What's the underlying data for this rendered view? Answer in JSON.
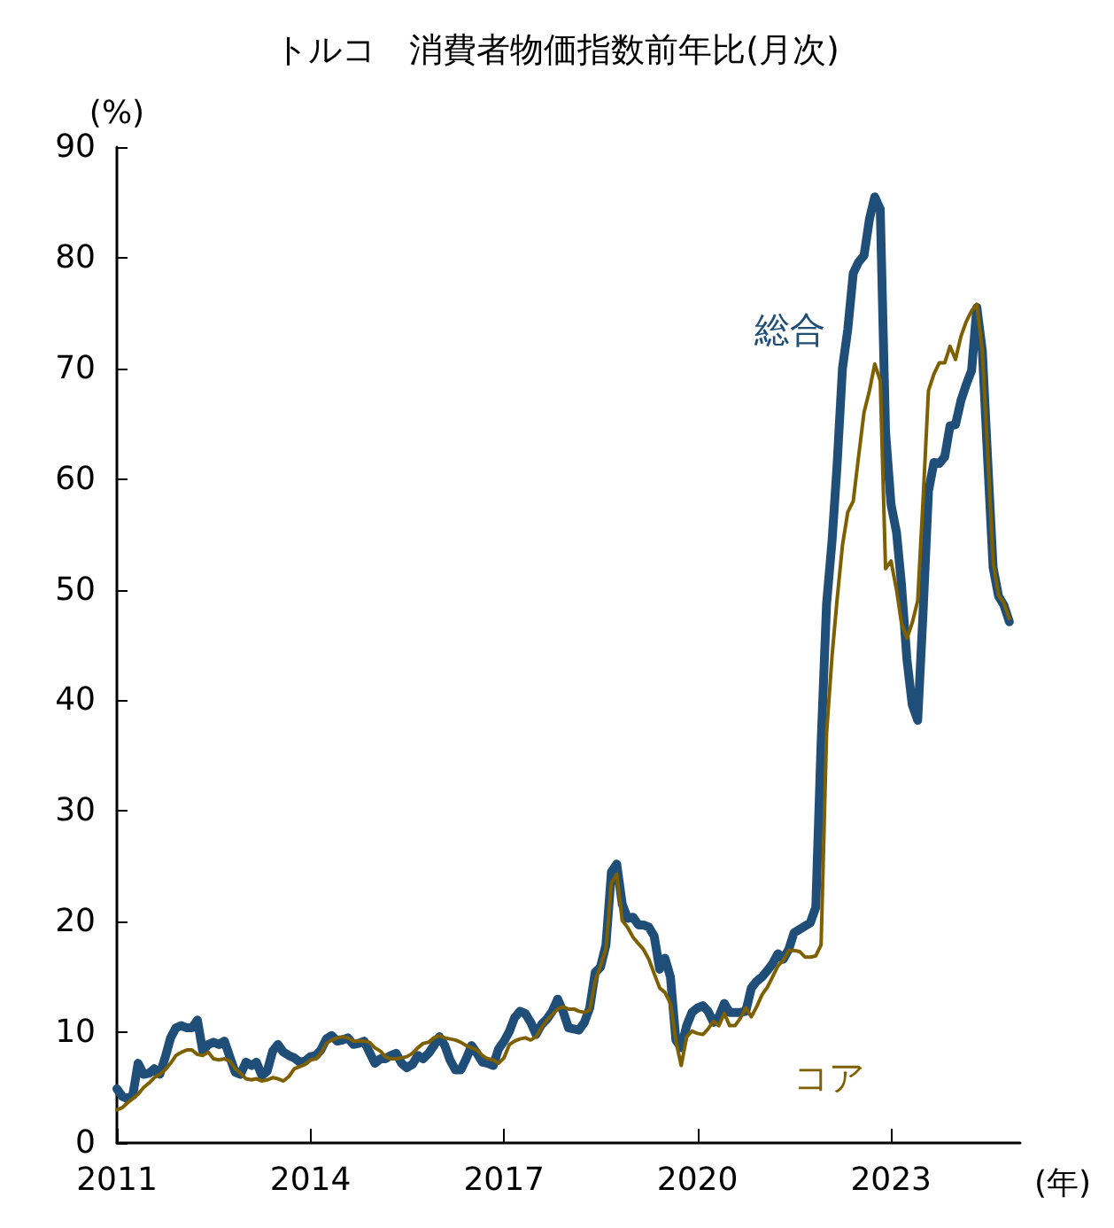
{
  "chart_data": {
    "type": "line",
    "title": "トルコ　消費者物価指数前年比(月次)",
    "ylabel": "(%)",
    "xlabel": "(年)",
    "x": [
      "2011-01",
      "2011-02",
      "2011-03",
      "2011-04",
      "2011-05",
      "2011-06",
      "2011-07",
      "2011-08",
      "2011-09",
      "2011-10",
      "2011-11",
      "2011-12",
      "2012-01",
      "2012-02",
      "2012-03",
      "2012-04",
      "2012-05",
      "2012-06",
      "2012-07",
      "2012-08",
      "2012-09",
      "2012-10",
      "2012-11",
      "2012-12",
      "2013-01",
      "2013-02",
      "2013-03",
      "2013-04",
      "2013-05",
      "2013-06",
      "2013-07",
      "2013-08",
      "2013-09",
      "2013-10",
      "2013-11",
      "2013-12",
      "2014-01",
      "2014-02",
      "2014-03",
      "2014-04",
      "2014-05",
      "2014-06",
      "2014-07",
      "2014-08",
      "2014-09",
      "2014-10",
      "2014-11",
      "2014-12",
      "2015-01",
      "2015-02",
      "2015-03",
      "2015-04",
      "2015-05",
      "2015-06",
      "2015-07",
      "2015-08",
      "2015-09",
      "2015-10",
      "2015-11",
      "2015-12",
      "2016-01",
      "2016-02",
      "2016-03",
      "2016-04",
      "2016-05",
      "2016-06",
      "2016-07",
      "2016-08",
      "2016-09",
      "2016-10",
      "2016-11",
      "2016-12",
      "2017-01",
      "2017-02",
      "2017-03",
      "2017-04",
      "2017-05",
      "2017-06",
      "2017-07",
      "2017-08",
      "2017-09",
      "2017-10",
      "2017-11",
      "2017-12",
      "2018-01",
      "2018-02",
      "2018-03",
      "2018-04",
      "2018-05",
      "2018-06",
      "2018-07",
      "2018-08",
      "2018-09",
      "2018-10",
      "2018-11",
      "2018-12",
      "2019-01",
      "2019-02",
      "2019-03",
      "2019-04",
      "2019-05",
      "2019-06",
      "2019-07",
      "2019-08",
      "2019-09",
      "2019-10",
      "2019-11",
      "2019-12",
      "2020-01",
      "2020-02",
      "2020-03",
      "2020-04",
      "2020-05",
      "2020-06",
      "2020-07",
      "2020-08",
      "2020-09",
      "2020-10",
      "2020-11",
      "2020-12",
      "2021-01",
      "2021-02",
      "2021-03",
      "2021-04",
      "2021-05",
      "2021-06",
      "2021-07",
      "2021-08",
      "2021-09",
      "2021-10",
      "2021-11",
      "2021-12",
      "2022-01",
      "2022-02",
      "2022-03",
      "2022-04",
      "2022-05",
      "2022-06",
      "2022-07",
      "2022-08",
      "2022-09",
      "2022-10",
      "2022-11",
      "2022-12",
      "2023-01",
      "2023-02",
      "2023-03",
      "2023-04",
      "2023-05",
      "2023-06",
      "2023-07",
      "2023-08",
      "2023-09",
      "2023-10",
      "2023-11",
      "2023-12",
      "2024-01",
      "2024-02",
      "2024-03",
      "2024-04",
      "2024-05",
      "2024-06",
      "2024-07",
      "2024-08",
      "2024-09",
      "2024-10",
      "2024-11"
    ],
    "xlim": [
      "2011-01",
      "2025-01"
    ],
    "xticks": [
      "2011",
      "2014",
      "2017",
      "2020",
      "2023"
    ],
    "ylim": [
      0,
      90
    ],
    "yticks": [
      0,
      10,
      20,
      30,
      40,
      50,
      60,
      70,
      80,
      90
    ],
    "grid": false,
    "legend": false,
    "marker": "none",
    "line_style": "solid",
    "series": [
      {
        "name": "総合",
        "color": "#1f4e79",
        "values": [
          4.9,
          4.2,
          4.0,
          4.3,
          7.2,
          6.2,
          6.3,
          6.7,
          6.2,
          7.7,
          9.5,
          10.4,
          10.6,
          10.4,
          10.4,
          11.1,
          8.3,
          8.9,
          9.1,
          8.9,
          9.2,
          7.8,
          6.4,
          6.2,
          7.3,
          7.0,
          7.3,
          6.1,
          6.5,
          8.3,
          8.9,
          8.2,
          7.9,
          7.7,
          7.3,
          7.4,
          7.8,
          7.9,
          8.4,
          9.4,
          9.7,
          9.2,
          9.3,
          9.5,
          8.9,
          9.0,
          9.2,
          8.2,
          7.2,
          7.6,
          7.6,
          7.9,
          8.1,
          7.2,
          6.8,
          7.1,
          7.9,
          7.6,
          8.1,
          8.8,
          9.6,
          8.8,
          7.5,
          6.6,
          6.6,
          7.6,
          8.8,
          8.1,
          7.3,
          7.2,
          7.0,
          8.5,
          9.2,
          10.1,
          11.3,
          11.9,
          11.7,
          10.9,
          9.8,
          10.7,
          11.2,
          11.9,
          13.0,
          11.9,
          10.4,
          10.3,
          10.2,
          10.9,
          12.2,
          15.4,
          15.9,
          17.9,
          24.5,
          25.2,
          21.6,
          20.3,
          20.4,
          19.7,
          19.7,
          19.5,
          18.7,
          15.7,
          16.7,
          15.0,
          9.3,
          8.6,
          10.6,
          11.8,
          12.2,
          12.4,
          11.9,
          10.9,
          11.4,
          12.6,
          11.8,
          11.8,
          11.8,
          11.9,
          14.0,
          14.6,
          15.0,
          15.6,
          16.2,
          17.1,
          16.6,
          17.5,
          19.0,
          19.3,
          19.6,
          19.9,
          21.3,
          36.1,
          48.7,
          54.4,
          61.1,
          70.0,
          73.5,
          78.6,
          79.6,
          80.2,
          83.5,
          85.5,
          84.4,
          64.3,
          57.7,
          55.2,
          50.5,
          43.7,
          39.6,
          38.2,
          47.8,
          58.9,
          61.5,
          61.4,
          62.0,
          64.8,
          64.9,
          67.1,
          68.5,
          69.8,
          75.5,
          71.6,
          61.8,
          52.0,
          49.4,
          48.6,
          47.1
        ]
      },
      {
        "name": "コア",
        "color": "#7f6000",
        "values": [
          3.0,
          3.2,
          3.6,
          4.0,
          4.4,
          5.0,
          5.4,
          5.9,
          6.2,
          6.6,
          7.2,
          7.9,
          8.2,
          8.4,
          8.4,
          8.0,
          7.9,
          8.2,
          7.6,
          7.5,
          7.6,
          7.4,
          6.7,
          6.3,
          5.8,
          5.7,
          5.8,
          5.6,
          5.7,
          5.9,
          5.8,
          5.6,
          6.0,
          6.7,
          6.9,
          7.1,
          7.5,
          7.6,
          8.1,
          9.0,
          9.3,
          9.5,
          9.6,
          9.5,
          9.2,
          9.2,
          9.2,
          9.1,
          8.6,
          8.3,
          7.8,
          7.6,
          7.6,
          7.7,
          7.8,
          8.1,
          8.6,
          9.0,
          9.1,
          9.5,
          9.7,
          9.5,
          9.4,
          9.3,
          9.1,
          8.8,
          8.6,
          8.4,
          7.9,
          7.6,
          7.5,
          7.2,
          7.7,
          8.9,
          9.2,
          9.4,
          9.5,
          9.3,
          9.6,
          10.4,
          11.1,
          11.6,
          12.1,
          12.3,
          12.1,
          12.1,
          11.9,
          11.8,
          12.0,
          14.6,
          16.0,
          17.5,
          23.5,
          24.3,
          20.1,
          19.5,
          18.6,
          18.0,
          17.5,
          16.6,
          15.3,
          14.0,
          13.6,
          12.6,
          9.2,
          7.0,
          9.6,
          10.1,
          9.9,
          9.8,
          10.3,
          11.0,
          10.6,
          11.7,
          10.6,
          10.6,
          11.3,
          12.2,
          11.4,
          12.3,
          13.4,
          14.1,
          15.0,
          16.0,
          16.5,
          17.4,
          17.4,
          17.3,
          16.8,
          16.8,
          16.9,
          17.9,
          37.0,
          44.0,
          49.0,
          54.0,
          57.0,
          58.0,
          62.0,
          66.0,
          68.0,
          70.4,
          68.9,
          51.9,
          52.6,
          50.0,
          47.0,
          45.6,
          47.0,
          49.0,
          58.0,
          68.0,
          69.5,
          70.5,
          70.5,
          72.0,
          70.8,
          72.9,
          74.2,
          75.2,
          75.8,
          71.5,
          62.5,
          52.5,
          49.5,
          48.8,
          47.4
        ]
      }
    ]
  }
}
